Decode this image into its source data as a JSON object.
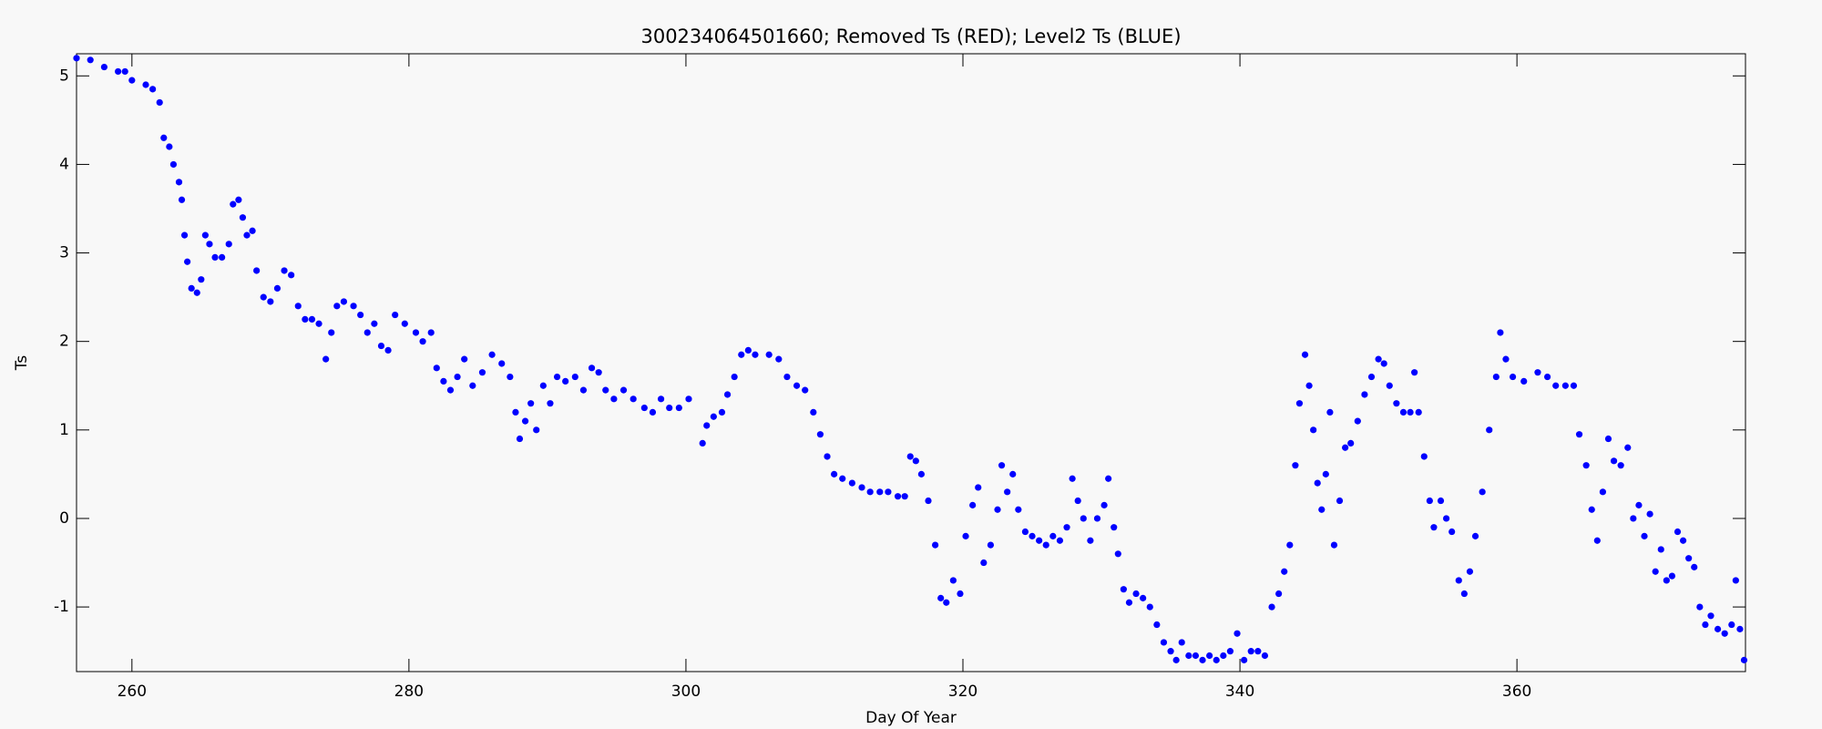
{
  "chart_data": {
    "type": "scatter",
    "title": "300234064501660; Removed Ts (RED); Level2 Ts (BLUE)",
    "x_label": "Day Of Year",
    "y_label": "Ts",
    "xlim": [
      256,
      376.5
    ],
    "ylim": [
      -1.73,
      5.25
    ],
    "xticks": [
      260,
      280,
      300,
      320,
      340,
      360
    ],
    "yticks": [
      -1,
      0,
      1,
      2,
      3,
      4,
      5
    ],
    "x": [
      256,
      257,
      258,
      259,
      259.5,
      260,
      261,
      261.5,
      262,
      262.3,
      262.7,
      263,
      263.4,
      263.6,
      263.8,
      264,
      264.3,
      264.7,
      265,
      265.3,
      265.6,
      266,
      266.5,
      267,
      267.3,
      267.7,
      268,
      268.3,
      268.7,
      269,
      269.5,
      270,
      270.5,
      271,
      271.5,
      272,
      272.5,
      273,
      273.5,
      274,
      274.4,
      274.8,
      275.3,
      276,
      276.5,
      277,
      277.5,
      278,
      278.5,
      279,
      279.7,
      280.5,
      281,
      281.6,
      282,
      282.5,
      283,
      283.5,
      284,
      284.6,
      285.3,
      286,
      286.7,
      287.3,
      287.7,
      288,
      288.4,
      288.8,
      289.2,
      289.7,
      290.2,
      290.7,
      291.3,
      292,
      292.6,
      293.2,
      293.7,
      294.2,
      294.8,
      295.5,
      296.2,
      297,
      297.6,
      298.2,
      298.8,
      299.5,
      300.2,
      301.2,
      301.5,
      302,
      302.6,
      303,
      303.5,
      304,
      304.5,
      305,
      306,
      306.7,
      307.3,
      308,
      308.6,
      309.2,
      309.7,
      310.2,
      310.7,
      311.3,
      312,
      312.7,
      313.3,
      314,
      314.6,
      315.3,
      315.8,
      316.2,
      316.6,
      317,
      317.5,
      318,
      318.4,
      318.8,
      319.3,
      319.8,
      320.2,
      320.7,
      321.1,
      321.5,
      322,
      322.5,
      322.8,
      323.2,
      323.6,
      324,
      324.5,
      325,
      325.5,
      326,
      326.5,
      327,
      327.5,
      327.9,
      328.3,
      328.7,
      329.2,
      329.7,
      330.2,
      330.5,
      330.9,
      331.2,
      331.6,
      332,
      332.5,
      333,
      333.5,
      334,
      334.5,
      335,
      335.4,
      335.8,
      336.3,
      336.8,
      337.3,
      337.8,
      338.3,
      338.8,
      339.3,
      339.8,
      340.3,
      340.8,
      341.3,
      341.8,
      342.3,
      342.8,
      343.2,
      343.6,
      344,
      344.3,
      344.7,
      345,
      345.3,
      345.6,
      345.9,
      346.2,
      346.5,
      346.8,
      347.2,
      347.6,
      348,
      348.5,
      349,
      349.5,
      350,
      350.4,
      350.8,
      351.3,
      351.8,
      352.3,
      352.6,
      352.9,
      353.3,
      353.7,
      354,
      354.5,
      354.9,
      355.3,
      355.8,
      356.2,
      356.6,
      357,
      357.5,
      358,
      358.5,
      358.8,
      359.2,
      359.7,
      360.5,
      361.5,
      362.2,
      362.8,
      363.5,
      364.1,
      364.5,
      365,
      365.4,
      365.8,
      366.2,
      366.6,
      367,
      367.5,
      368,
      368.4,
      368.8,
      369.2,
      369.6,
      370,
      370.4,
      370.8,
      371.2,
      371.6,
      372,
      372.4,
      372.8,
      373.2,
      373.6,
      374,
      374.5,
      375,
      375.5,
      375.8,
      376.1,
      376.4
    ],
    "series": [
      {
        "color": "#0000ff",
        "values": [
          5.2,
          5.18,
          5.1,
          5.05,
          5.05,
          4.95,
          4.9,
          4.85,
          4.7,
          4.3,
          4.2,
          4.0,
          3.8,
          3.6,
          3.2,
          2.9,
          2.6,
          2.55,
          2.7,
          3.2,
          3.1,
          2.95,
          2.95,
          3.1,
          3.55,
          3.6,
          3.4,
          3.2,
          3.25,
          2.8,
          2.5,
          2.45,
          2.6,
          2.8,
          2.75,
          2.4,
          2.25,
          2.25,
          2.2,
          1.8,
          2.1,
          2.4,
          2.45,
          2.4,
          2.3,
          2.1,
          2.2,
          1.95,
          1.9,
          2.3,
          2.2,
          2.1,
          2.0,
          2.1,
          1.7,
          1.55,
          1.45,
          1.6,
          1.8,
          1.5,
          1.65,
          1.85,
          1.75,
          1.6,
          1.2,
          0.9,
          1.1,
          1.3,
          1.0,
          1.5,
          1.3,
          1.6,
          1.55,
          1.6,
          1.45,
          1.7,
          1.65,
          1.45,
          1.35,
          1.45,
          1.35,
          1.25,
          1.2,
          1.35,
          1.25,
          1.25,
          1.35,
          0.85,
          1.05,
          1.15,
          1.2,
          1.4,
          1.6,
          1.85,
          1.9,
          1.85,
          1.85,
          1.8,
          1.6,
          1.5,
          1.45,
          1.2,
          0.95,
          0.7,
          0.5,
          0.45,
          0.4,
          0.35,
          0.3,
          0.3,
          0.3,
          0.25,
          0.25,
          0.7,
          0.65,
          0.5,
          0.2,
          -0.3,
          -0.9,
          -0.95,
          -0.7,
          -0.85,
          -0.2,
          0.15,
          0.35,
          -0.5,
          -0.3,
          0.1,
          0.6,
          0.3,
          0.5,
          0.1,
          -0.15,
          -0.2,
          -0.25,
          -0.3,
          -0.2,
          -0.25,
          -0.1,
          0.45,
          0.2,
          0,
          -0.25,
          0.0,
          0.15,
          0.45,
          -0.1,
          -0.4,
          -0.8,
          -0.95,
          -0.85,
          -0.9,
          -1.0,
          -1.2,
          -1.4,
          -1.5,
          -1.6,
          -1.4,
          -1.55,
          -1.55,
          -1.6,
          -1.55,
          -1.6,
          -1.55,
          -1.5,
          -1.3,
          -1.6,
          -1.5,
          -1.5,
          -1.55,
          -1.0,
          -0.85,
          -0.6,
          -0.3,
          0.6,
          1.3,
          1.85,
          1.5,
          1.0,
          0.4,
          0.1,
          0.5,
          1.2,
          -0.3,
          0.2,
          0.8,
          0.85,
          1.1,
          1.4,
          1.6,
          1.8,
          1.75,
          1.5,
          1.3,
          1.2,
          1.2,
          1.65,
          1.2,
          0.7,
          0.2,
          -0.1,
          0.2,
          0.0,
          -0.15,
          -0.7,
          -0.85,
          -0.6,
          -0.2,
          0.3,
          1.0,
          1.6,
          2.1,
          1.8,
          1.6,
          1.55,
          1.65,
          1.6,
          1.5,
          1.5,
          1.5,
          0.95,
          0.6,
          0.1,
          -0.25,
          0.3,
          0.9,
          0.65,
          0.6,
          0.8,
          0.0,
          0.15,
          -0.2,
          0.05,
          -0.6,
          -0.35,
          -0.7,
          -0.65,
          -0.15,
          -0.25,
          -0.45,
          -0.55,
          -1.0,
          -1.2,
          -1.1,
          -1.25,
          -1.3,
          -1.2,
          -0.7,
          -1.25,
          -1.6
        ]
      }
    ]
  }
}
